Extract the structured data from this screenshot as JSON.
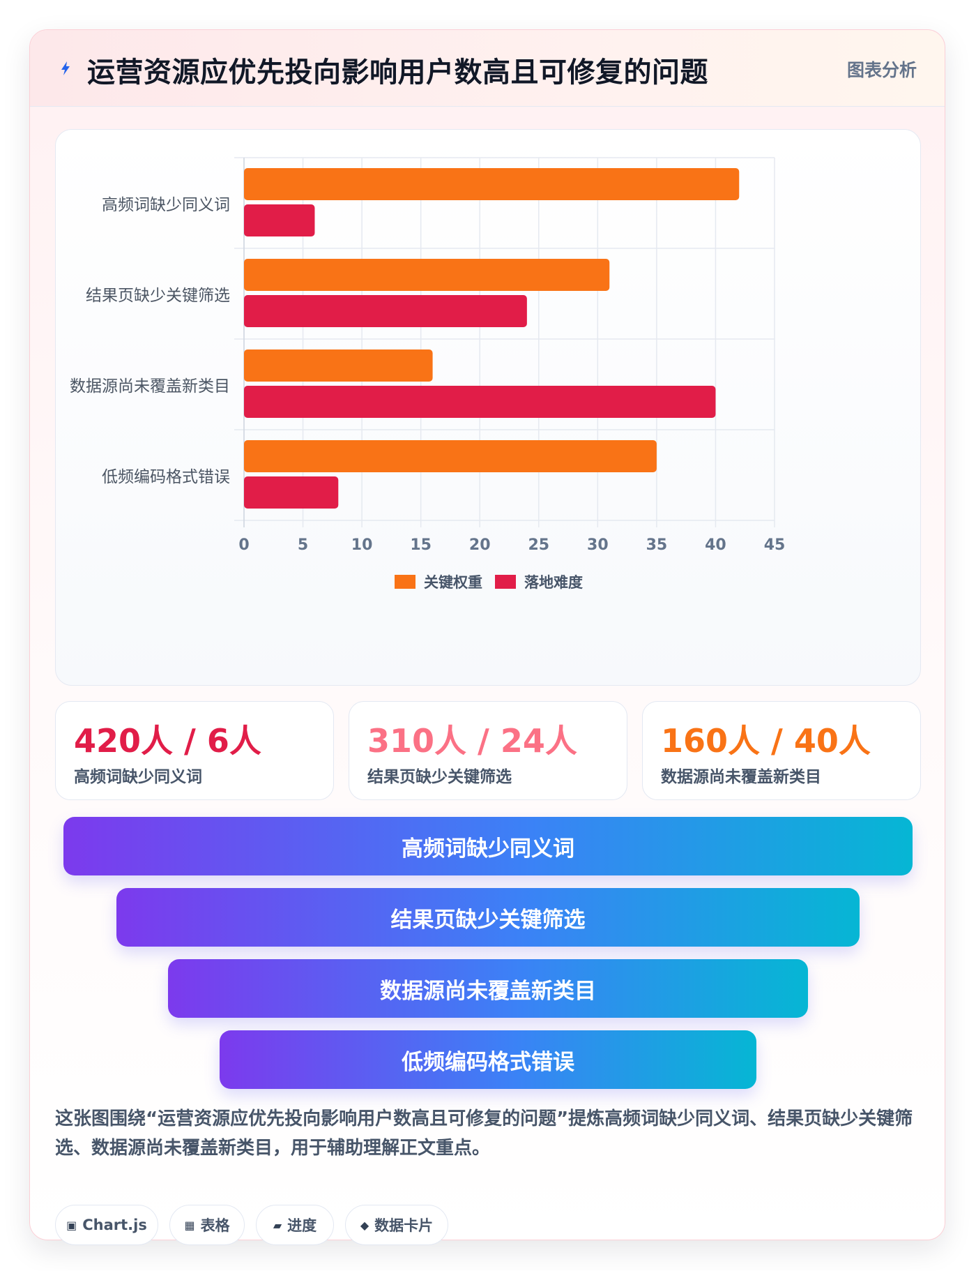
{
  "header": {
    "title": "运营资源应优先投向影响用户数高且可修复的问题",
    "tag": "图表分析",
    "accent": "#2563eb"
  },
  "chart_data": {
    "type": "bar",
    "orientation": "horizontal",
    "categories": [
      "高频词缺少同义词",
      "结果页缺少关键筛选",
      "数据源尚未覆盖新类目",
      "低频编码格式错误"
    ],
    "series": [
      {
        "name": "关键权重",
        "color": "#f97316",
        "values": [
          42,
          31,
          16,
          35
        ]
      },
      {
        "name": "落地难度",
        "color": "#e11d48",
        "values": [
          6,
          24,
          40,
          8
        ]
      }
    ],
    "xlim": [
      0,
      45
    ],
    "xticks": [
      0,
      5,
      10,
      15,
      20,
      25,
      30,
      35,
      40,
      45
    ],
    "grid": true,
    "legend_position": "bottom"
  },
  "kpis": [
    {
      "value": "420人 / 6人",
      "label": "高频词缺少同义词",
      "color": "#e11d48"
    },
    {
      "value": "310人 / 24人",
      "label": "结果页缺少关键筛选",
      "color": "#fb7185"
    },
    {
      "value": "160人 / 40人",
      "label": "数据源尚未覆盖新类目",
      "color": "#f97316"
    }
  ],
  "funnel": [
    {
      "label": "高频词缺少同义词"
    },
    {
      "label": "结果页缺少关键筛选"
    },
    {
      "label": "数据源尚未覆盖新类目"
    },
    {
      "label": "低频编码格式错误"
    }
  ],
  "summary": "这张图围绕“运营资源应优先投向影响用户数高且可修复的问题”提炼高频词缺少同义词、结果页缺少关键筛选、数据源尚未覆盖新类目，用于辅助理解正文重点。",
  "chips": [
    {
      "icon": "▣",
      "label": "Chart.js",
      "icon_name": "chart-icon"
    },
    {
      "icon": "▦",
      "label": "表格",
      "icon_name": "table-icon"
    },
    {
      "icon": "▰",
      "label": "进度",
      "icon_name": "progress-icon"
    },
    {
      "icon": "◆",
      "label": "数据卡片",
      "icon_name": "card-icon"
    }
  ]
}
